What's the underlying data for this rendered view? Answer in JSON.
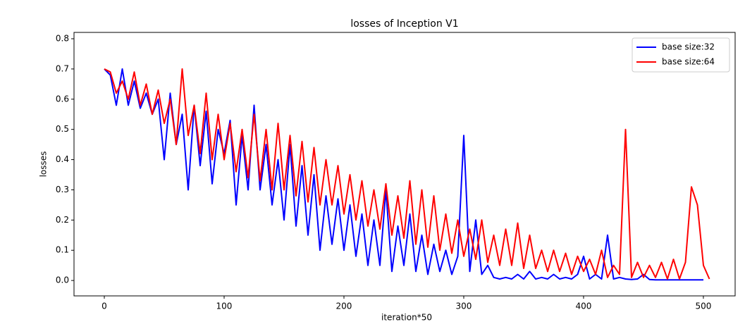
{
  "chart_data": {
    "type": "line",
    "title": "losses of Inception V1",
    "x_label": "iteration*50",
    "y_label": "losses",
    "x": [
      0,
      5,
      10,
      15,
      20,
      25,
      30,
      35,
      40,
      45,
      50,
      55,
      60,
      65,
      70,
      75,
      80,
      85,
      90,
      95,
      100,
      105,
      110,
      115,
      120,
      125,
      130,
      135,
      140,
      145,
      150,
      155,
      160,
      165,
      170,
      175,
      180,
      185,
      190,
      195,
      200,
      205,
      210,
      215,
      220,
      225,
      230,
      235,
      240,
      245,
      250,
      255,
      260,
      265,
      270,
      275,
      280,
      285,
      290,
      295,
      300,
      305,
      310,
      315,
      320,
      325,
      330,
      335,
      340,
      345,
      350,
      355,
      360,
      365,
      370,
      375,
      380,
      385,
      390,
      395,
      400,
      405,
      410,
      415,
      420,
      425,
      430,
      435,
      440,
      445,
      450,
      455,
      460,
      465,
      470,
      475,
      480,
      485,
      490,
      495,
      500,
      505
    ],
    "series": [
      {
        "name": "base size:32",
        "color": "#0000ff",
        "values": [
          0.7,
          0.68,
          0.58,
          0.7,
          0.58,
          0.66,
          0.57,
          0.62,
          0.55,
          0.6,
          0.4,
          0.62,
          0.45,
          0.55,
          0.3,
          0.58,
          0.38,
          0.56,
          0.32,
          0.5,
          0.42,
          0.53,
          0.25,
          0.48,
          0.3,
          0.58,
          0.3,
          0.45,
          0.25,
          0.4,
          0.2,
          0.45,
          0.18,
          0.38,
          0.15,
          0.35,
          0.1,
          0.28,
          0.12,
          0.27,
          0.1,
          0.25,
          0.08,
          0.22,
          0.05,
          0.2,
          0.05,
          0.3,
          0.03,
          0.18,
          0.05,
          0.22,
          0.03,
          0.15,
          0.02,
          0.12,
          0.03,
          0.1,
          0.02,
          0.08,
          0.48,
          0.03,
          0.2,
          0.02,
          0.05,
          0.01,
          0.005,
          0.01,
          0.005,
          0.02,
          0.005,
          0.03,
          0.005,
          0.01,
          0.005,
          0.02,
          0.005,
          0.01,
          0.005,
          0.02,
          0.08,
          0.005,
          0.02,
          0.005,
          0.15,
          0.005,
          0.01,
          0.005,
          0.003,
          0.005,
          0.02,
          0.003,
          0.002,
          0.002,
          0.002,
          0.002,
          0.002,
          0.002,
          0.002,
          0.002,
          0.002,
          null
        ]
      },
      {
        "name": "base size:64",
        "color": "#ff0000",
        "values": [
          0.7,
          0.69,
          0.62,
          0.66,
          0.6,
          0.69,
          0.58,
          0.65,
          0.55,
          0.63,
          0.52,
          0.6,
          0.45,
          0.7,
          0.48,
          0.58,
          0.42,
          0.62,
          0.4,
          0.55,
          0.4,
          0.52,
          0.36,
          0.5,
          0.34,
          0.55,
          0.33,
          0.5,
          0.3,
          0.52,
          0.3,
          0.48,
          0.28,
          0.46,
          0.26,
          0.44,
          0.25,
          0.4,
          0.25,
          0.38,
          0.22,
          0.35,
          0.2,
          0.33,
          0.18,
          0.3,
          0.17,
          0.32,
          0.15,
          0.28,
          0.14,
          0.33,
          0.12,
          0.3,
          0.11,
          0.28,
          0.1,
          0.22,
          0.09,
          0.2,
          0.08,
          0.17,
          0.07,
          0.2,
          0.06,
          0.15,
          0.05,
          0.17,
          0.05,
          0.19,
          0.04,
          0.15,
          0.04,
          0.1,
          0.03,
          0.1,
          0.03,
          0.09,
          0.02,
          0.08,
          0.03,
          0.07,
          0.02,
          0.1,
          0.01,
          0.05,
          0.02,
          0.5,
          0.01,
          0.06,
          0.01,
          0.05,
          0.01,
          0.06,
          0.005,
          0.07,
          0.005,
          0.06,
          0.31,
          0.25,
          0.05,
          0.005
        ]
      }
    ],
    "xlim": [
      -25.3,
      526.5
    ],
    "ylim": [
      -0.051,
      0.821
    ],
    "xticks": [
      0,
      100,
      200,
      300,
      400,
      500
    ],
    "yticks": [
      {
        "value": 0,
        "label": "0.0"
      },
      0.1,
      0.2,
      0.3,
      0.4,
      0.5,
      0.6,
      0.7,
      0.8
    ],
    "legend": "upper right"
  }
}
